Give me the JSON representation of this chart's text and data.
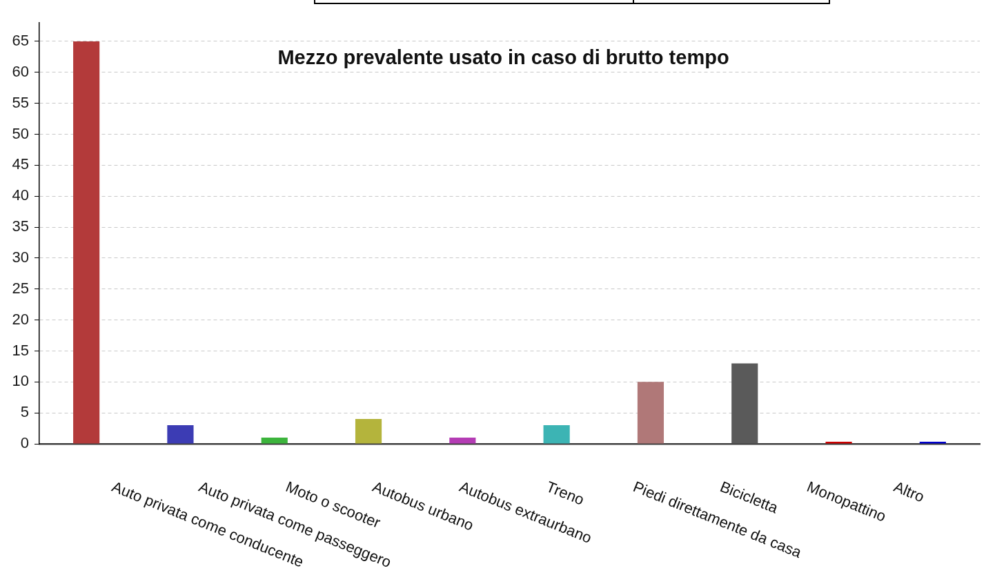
{
  "chart_data": {
    "type": "bar",
    "title": "Mezzo prevalente usato in caso di brutto tempo",
    "categories": [
      "Auto privata come conducente",
      "Auto privata come passeggero",
      "Moto o scooter",
      "Autobus urbano",
      "Autobus extraurbano",
      "Treno",
      "Piedi direttamente da casa",
      "Bicicletta",
      "Monopattino",
      "Altro"
    ],
    "values": [
      65,
      3,
      1,
      4,
      1,
      3,
      10,
      13,
      0,
      0
    ],
    "colors": [
      "#b33a3a",
      "#3c3cb4",
      "#3cb43c",
      "#b4b43c",
      "#b43cb4",
      "#3cb4b4",
      "#b07878",
      "#5a5a5a",
      "#cc0000",
      "#0000cc"
    ],
    "ylim": [
      0,
      68
    ],
    "yticks": [
      0,
      5,
      10,
      15,
      20,
      25,
      30,
      35,
      40,
      45,
      50,
      55,
      60,
      65
    ],
    "grid": "y"
  }
}
